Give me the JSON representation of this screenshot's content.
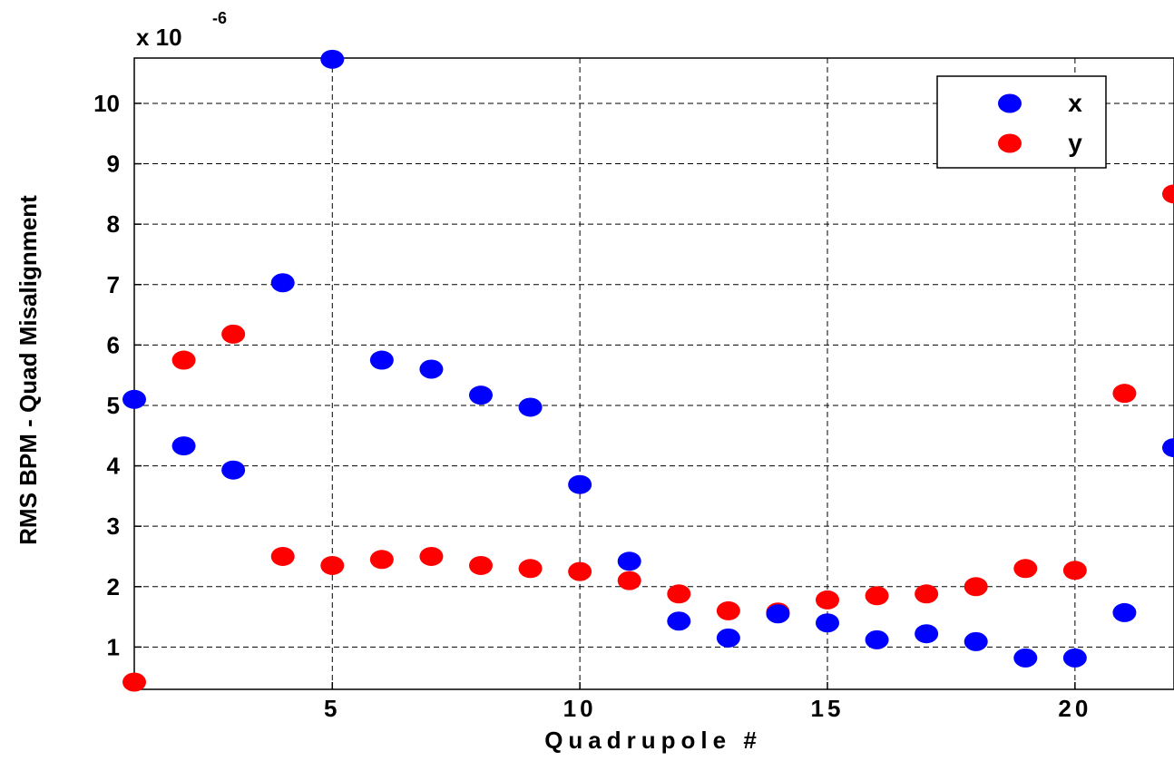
{
  "chart_data": {
    "type": "scatter",
    "title": "",
    "xlabel": "Quadrupole #",
    "ylabel": "RMS BPM - Quad Misalignment",
    "y_multiplier": {
      "base": "x 10",
      "exponent": "-6"
    },
    "xlim": [
      1,
      22
    ],
    "ylim": [
      0.3,
      10.75
    ],
    "xticks": [
      5,
      10,
      15,
      20
    ],
    "xtick_labels": [
      "5",
      "10",
      "15",
      "20"
    ],
    "yticks": [
      1,
      2,
      3,
      4,
      5,
      6,
      7,
      8,
      9,
      10
    ],
    "ytick_labels": [
      "1",
      "2",
      "3",
      "4",
      "5",
      "6",
      "7",
      "8",
      "9",
      "10"
    ],
    "grid": true,
    "legend": {
      "position": "top-right"
    },
    "series": [
      {
        "name": "x",
        "color": "#0000ff",
        "x": [
          1,
          2,
          3,
          4,
          5,
          6,
          7,
          8,
          9,
          10,
          11,
          12,
          13,
          14,
          15,
          16,
          17,
          18,
          19,
          20,
          21,
          22
        ],
        "y": [
          5.1,
          4.33,
          3.93,
          7.03,
          10.73,
          5.75,
          5.6,
          5.17,
          4.97,
          3.69,
          2.42,
          1.43,
          1.15,
          1.55,
          1.4,
          1.12,
          1.22,
          1.09,
          0.82,
          0.82,
          1.57,
          4.3
        ]
      },
      {
        "name": "y",
        "color": "#ff0000",
        "x": [
          1,
          2,
          3,
          4,
          5,
          6,
          7,
          8,
          9,
          10,
          11,
          12,
          13,
          14,
          15,
          16,
          17,
          18,
          19,
          20,
          21,
          22
        ],
        "y": [
          0.42,
          5.75,
          6.18,
          2.5,
          2.35,
          2.45,
          2.5,
          2.35,
          2.3,
          2.25,
          2.1,
          1.88,
          1.6,
          1.58,
          1.78,
          1.85,
          1.88,
          2.0,
          2.3,
          2.27,
          5.2,
          8.5
        ]
      }
    ]
  }
}
